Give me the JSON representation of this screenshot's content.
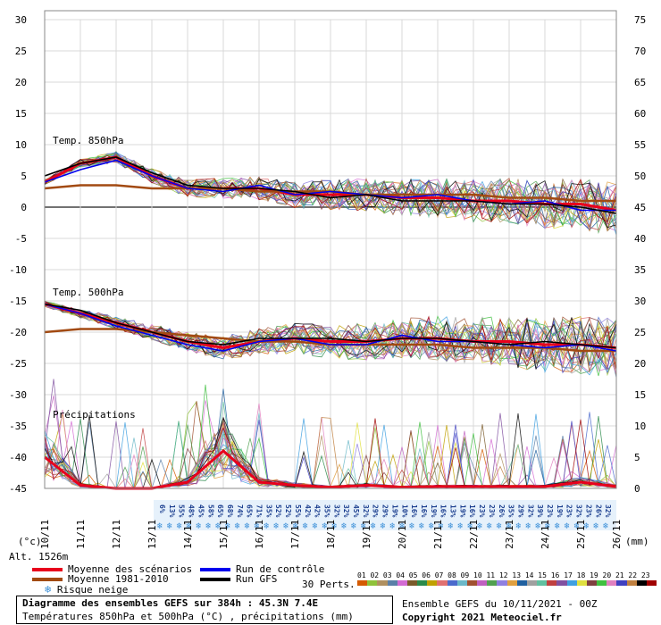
{
  "left_axis_ticks": [
    "30",
    "25",
    "20",
    "15",
    "10",
    "5",
    "0",
    "-5",
    "-10",
    "-15",
    "-20",
    "-25",
    "-30",
    "-35",
    "-40",
    "-45"
  ],
  "right_axis_ticks": [
    "75",
    "70",
    "65",
    "60",
    "55",
    "50",
    "45",
    "40",
    "35",
    "30",
    "25",
    "20",
    "15",
    "10",
    "5",
    "0"
  ],
  "date_labels": [
    "10/11",
    "11/11",
    "12/11",
    "13/11",
    "14/11",
    "15/11",
    "16/11",
    "17/11",
    "18/11",
    "19/11",
    "20/11",
    "21/11",
    "22/11",
    "23/11",
    "24/11",
    "25/11",
    "26/11"
  ],
  "unit_left": "(°c)",
  "unit_right": "(mm)",
  "altitude": "Alt. 1526m",
  "panel_labels": {
    "t850": "Temp. 850hPa",
    "t500": "Temp. 500hPa",
    "precip": "Précipitations"
  },
  "snow_risk": [
    "6%",
    "13%",
    "55%",
    "48%",
    "45%",
    "58%",
    "65%",
    "68%",
    "74%",
    "65%",
    "71%",
    "35%",
    "52%",
    "52%",
    "55%",
    "42%",
    "42%",
    "35%",
    "32%",
    "32%",
    "45%",
    "32%",
    "29%",
    "29%",
    "19%",
    "10%",
    "16%",
    "16%",
    "19%",
    "16%",
    "13%",
    "19%",
    "16%",
    "23%",
    "23%",
    "26%",
    "35%",
    "29%",
    "32%",
    "39%",
    "23%",
    "19%",
    "23%",
    "32%",
    "23%",
    "26%",
    "32%"
  ],
  "legend": {
    "mean": "Moyenne des scénarios",
    "clim": "Moyenne 1981-2010",
    "snow": "Risque neige",
    "control": "Run de contrôle",
    "gfs": "Run GFS",
    "perts": "30 Perts."
  },
  "pert_numbers": "01 02 03 04 05 06 07 08 09 10 11 12 13 14 15 16 17 18 19 20 21 22 23 24 25 26 27 28 29 30",
  "pert_colors": [
    "#d45a00",
    "#8fc23a",
    "#b09060",
    "#5a7fa8",
    "#d36bd3",
    "#7a5a2a",
    "#2a8a4a",
    "#c0a000",
    "#e07070",
    "#4a6acc",
    "#6bb8c8",
    "#a05030",
    "#c060c0",
    "#50a050",
    "#9080e0",
    "#e0a040",
    "#2060a0",
    "#a0a0a0",
    "#60c0a0",
    "#c04040",
    "#8050a0",
    "#40a0e0",
    "#e0e040",
    "#804040",
    "#40c040",
    "#e080c0",
    "#4040c0",
    "#c08040",
    "#000000",
    "#a00000"
  ],
  "footer": {
    "title": "Diagramme des ensembles GEFS sur 384h : 45.3N 7.4E",
    "subtitle": "Températures 850hPa et 500hPa (°C) , précipitations (mm)",
    "run": "Ensemble GEFS du 10/11/2021 - 00Z",
    "copyright": "Copyright 2021 Meteociel.fr"
  },
  "colors": {
    "mean": "#e8001c",
    "clim": "#a24a12",
    "control": "#0000ee",
    "gfs": "#000000",
    "snow": "#3a8fd8"
  },
  "chart_data": {
    "type": "line",
    "title": "Diagramme des ensembles GEFS sur 384h : 45.3N 7.4E",
    "xlabel": "",
    "ylabel": "(°c)",
    "y2label": "(mm)",
    "ylim": [
      -45,
      30
    ],
    "y2lim": [
      0,
      75
    ],
    "x": [
      "10/11",
      "11/11",
      "12/11",
      "13/11",
      "14/11",
      "15/11",
      "16/11",
      "17/11",
      "18/11",
      "19/11",
      "20/11",
      "21/11",
      "22/11",
      "23/11",
      "24/11",
      "25/11",
      "26/11"
    ],
    "series": [
      {
        "name": "Moyenne des scénarios",
        "group": "t850",
        "values": [
          4,
          7,
          8,
          5,
          3,
          3,
          3,
          2,
          2,
          2,
          1.5,
          1.5,
          1,
          1,
          0.5,
          0.5,
          -0.5
        ]
      },
      {
        "name": "Moyenne 1981-2010",
        "group": "t850",
        "values": [
          3,
          3.5,
          3.5,
          3,
          3,
          3,
          2.5,
          2.5,
          2.5,
          2,
          2,
          2,
          2,
          1.5,
          1.5,
          1,
          1
        ]
      },
      {
        "name": "Run de contrôle",
        "group": "t850",
        "values": [
          4,
          6,
          7.5,
          5,
          3,
          2.5,
          3.5,
          2,
          2.5,
          2,
          1.5,
          2,
          1,
          0.5,
          1,
          -0.5,
          -0.5
        ]
      },
      {
        "name": "Run GFS",
        "group": "t850",
        "values": [
          5,
          7,
          8,
          5.5,
          3.5,
          3,
          3,
          2.5,
          1.5,
          2,
          1,
          1,
          1,
          0.5,
          0.5,
          0,
          -1
        ]
      },
      {
        "name": "Moyenne des scénarios",
        "group": "t500",
        "values": [
          -15.5,
          -17,
          -18.5,
          -20,
          -21.5,
          -22.5,
          -21.5,
          -21,
          -21.5,
          -21.5,
          -21,
          -21,
          -21.5,
          -21.5,
          -22,
          -22,
          -22.5
        ]
      },
      {
        "name": "Moyenne 1981-2010",
        "group": "t500",
        "values": [
          -20,
          -19.5,
          -19.5,
          -20,
          -20.5,
          -21,
          -21.5,
          -21.5,
          -22,
          -22,
          -22,
          -22,
          -22.5,
          -22.5,
          -22.5,
          -23,
          -23
        ]
      },
      {
        "name": "Run de contrôle",
        "group": "t500",
        "values": [
          -15.5,
          -17,
          -19,
          -20.5,
          -22,
          -23,
          -21.5,
          -21,
          -22,
          -22,
          -20.5,
          -21.5,
          -21.5,
          -22,
          -22.5,
          -22,
          -23
        ]
      },
      {
        "name": "Run GFS",
        "group": "t500",
        "values": [
          -15.5,
          -16.5,
          -18.5,
          -20,
          -21.5,
          -22,
          -21,
          -21,
          -21,
          -21.5,
          -21,
          -21,
          -21.5,
          -22,
          -21.5,
          -22,
          -22.5
        ]
      },
      {
        "name": "Moyenne des scénarios",
        "group": "precip_mm",
        "values": [
          5,
          0.5,
          0,
          0,
          1,
          6,
          1,
          0.5,
          0.2,
          0.5,
          0.2,
          0.3,
          0.3,
          0.3,
          0.3,
          1,
          0.3
        ]
      }
    ],
    "grid": true,
    "legend_position": "bottom-left"
  }
}
